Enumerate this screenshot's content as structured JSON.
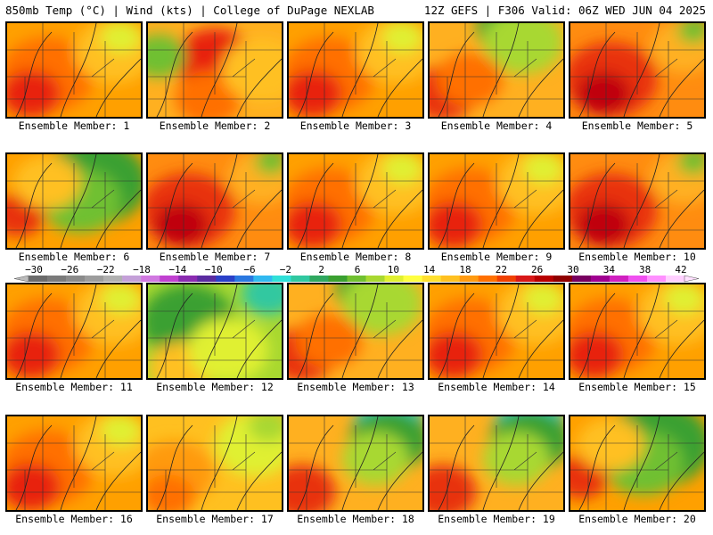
{
  "header": {
    "left": "850mb Temp (°C) | Wind (kts) | College of DuPage NEXLAB",
    "right": "12Z GEFS | F306 Valid: 06Z WED JUN 04 2025"
  },
  "legend": {
    "ticks": [
      "−30",
      "−26",
      "−22",
      "−18",
      "−14",
      "−10",
      "−6",
      "−2",
      "2",
      "6",
      "10",
      "14",
      "18",
      "22",
      "26",
      "30",
      "34",
      "38",
      "42"
    ],
    "colors": [
      "#6b6b6b",
      "#7a7a7a",
      "#8a8a8a",
      "#9c9c9c",
      "#b0b0b0",
      "#c4a0d8",
      "#d078e0",
      "#c040d0",
      "#8a2bb0",
      "#5a2ba0",
      "#2a40c8",
      "#2a78e0",
      "#30b8f0",
      "#30e0d8",
      "#30c8a0",
      "#30a860",
      "#3aa030",
      "#70c030",
      "#a8d830",
      "#e0f030",
      "#ffff40",
      "#ffe030",
      "#ffc020",
      "#ff9a10",
      "#ff7000",
      "#f04000",
      "#d81818",
      "#b80000",
      "#900000",
      "#780060",
      "#a00090",
      "#d020c0",
      "#f050f0",
      "#ff90ff",
      "#ffd0ff"
    ]
  },
  "panels": [
    {
      "label": "Ensemble Member: 1",
      "scheme": "warm"
    },
    {
      "label": "Ensemble Member: 2",
      "scheme": "hotwest"
    },
    {
      "label": "Ensemble Member: 3",
      "scheme": "warm"
    },
    {
      "label": "Ensemble Member: 4",
      "scheme": "warmcoolne"
    },
    {
      "label": "Ensemble Member: 5",
      "scheme": "hot"
    },
    {
      "label": "Ensemble Member: 6",
      "scheme": "coolne"
    },
    {
      "label": "Ensemble Member: 7",
      "scheme": "hot"
    },
    {
      "label": "Ensemble Member: 8",
      "scheme": "warm"
    },
    {
      "label": "Ensemble Member: 9",
      "scheme": "warm"
    },
    {
      "label": "Ensemble Member: 10",
      "scheme": "hot"
    },
    {
      "label": "Ensemble Member: 11",
      "scheme": "warm"
    },
    {
      "label": "Ensemble Member: 12",
      "scheme": "cool"
    },
    {
      "label": "Ensemble Member: 13",
      "scheme": "warmcoolne"
    },
    {
      "label": "Ensemble Member: 14",
      "scheme": "warm"
    },
    {
      "label": "Ensemble Member: 15",
      "scheme": "warm"
    },
    {
      "label": "Ensemble Member: 16",
      "scheme": "warm"
    },
    {
      "label": "Ensemble Member: 17",
      "scheme": "mild"
    },
    {
      "label": "Ensemble Member: 18",
      "scheme": "coldne"
    },
    {
      "label": "Ensemble Member: 19",
      "scheme": "coldne"
    },
    {
      "label": "Ensemble Member: 20",
      "scheme": "coolne"
    }
  ]
}
